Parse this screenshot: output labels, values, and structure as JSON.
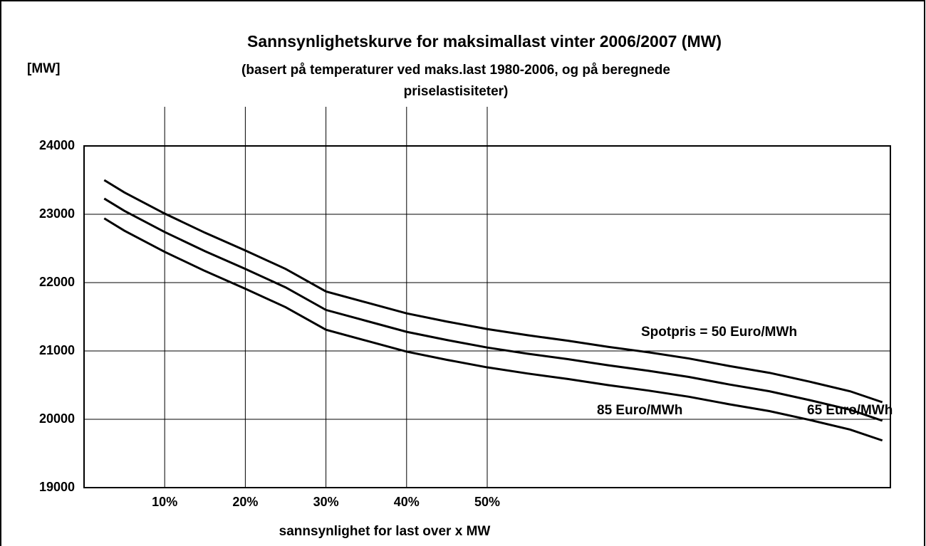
{
  "chart_data": {
    "type": "line",
    "title": "Sannsynlighetskurve for maksimallast vinter 2006/2007 (MW)",
    "subtitle": "(basert på temperaturer ved maks.last 1980-2006, og på beregnede priselastisiteter)",
    "ylabel": "[MW]",
    "xlabel": "sannsynlighet for last over  x MW",
    "x": [
      2.5,
      5,
      10,
      15,
      20,
      25,
      30,
      35,
      40,
      45,
      50,
      55,
      60,
      65,
      70,
      75,
      80,
      85,
      90,
      95,
      99
    ],
    "series": [
      {
        "name": "Spotpris = 50 Euro/MWh",
        "color": "#000000",
        "values": [
          23500,
          23320,
          23010,
          22730,
          22470,
          22200,
          21870,
          21710,
          21550,
          21430,
          21320,
          21230,
          21150,
          21060,
          20980,
          20890,
          20780,
          20680,
          20550,
          20410,
          20250
        ]
      },
      {
        "name": "65 Euro/MWh",
        "color": "#000000",
        "values": [
          23230,
          23050,
          22740,
          22460,
          22200,
          21930,
          21600,
          21440,
          21280,
          21160,
          21050,
          20960,
          20880,
          20790,
          20710,
          20620,
          20510,
          20410,
          20280,
          20140,
          19980
        ]
      },
      {
        "name": "85 Euro/MWh",
        "color": "#000000",
        "values": [
          22940,
          22760,
          22450,
          22170,
          21910,
          21640,
          21310,
          21150,
          20990,
          20870,
          20760,
          20670,
          20590,
          20500,
          20420,
          20330,
          20220,
          20120,
          19990,
          19850,
          19690
        ]
      }
    ],
    "xlim": [
      0,
      100
    ],
    "xticks": [
      {
        "value": 10,
        "label": "10%"
      },
      {
        "value": 20,
        "label": "20%"
      },
      {
        "value": 30,
        "label": "30%"
      },
      {
        "value": 40,
        "label": "40%"
      },
      {
        "value": 50,
        "label": "50%"
      }
    ],
    "ylim": [
      19000,
      24000
    ],
    "yticks": [
      19000,
      20000,
      21000,
      22000,
      23000,
      24000
    ],
    "grid": true
  }
}
